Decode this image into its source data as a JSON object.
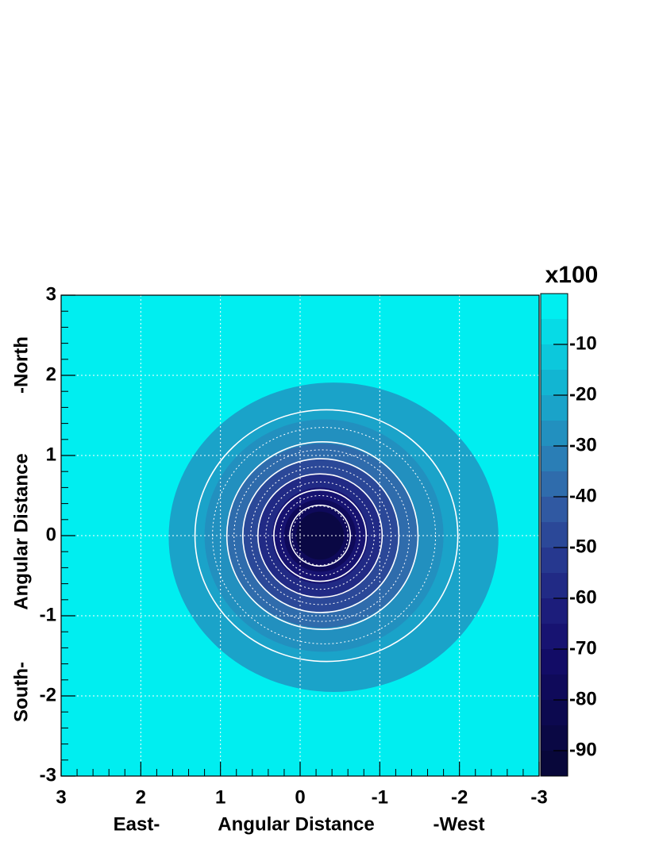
{
  "chart_data": {
    "type": "contour",
    "xlabel": [
      "East-",
      "Angular Distance",
      "-West"
    ],
    "ylabel": [
      "South-",
      "Angular Distance",
      "-North"
    ],
    "xlim": [
      3,
      -3
    ],
    "ylim": [
      -3,
      3
    ],
    "xticks": [
      3,
      2,
      1,
      0,
      -1,
      -2,
      -3
    ],
    "yticks": [
      -3,
      -2,
      -1,
      0,
      1,
      2,
      3
    ],
    "minor_per_major": 5,
    "grid": true,
    "z_multiplier": "x100",
    "zlim": [
      -95,
      0
    ],
    "zticks": [
      -10,
      -20,
      -30,
      -40,
      -50,
      -60,
      -70,
      -80,
      -90
    ],
    "zlevels": [
      0,
      -5,
      -10,
      -15,
      -20,
      -25,
      -30,
      -35,
      -40,
      -45,
      -50,
      -55,
      -60,
      -65,
      -70,
      -75,
      -80,
      -85,
      -90,
      -95
    ],
    "zcolors": [
      "#00eef0",
      "#06dbe6",
      "#0cc8dc",
      "#12b5d2",
      "#1aa3c9",
      "#2290bf",
      "#2a7eb6",
      "#2f6cac",
      "#3059a2",
      "#2b4898",
      "#26388f",
      "#212a85",
      "#1c1d7b",
      "#171371",
      "#120c66",
      "#0f0a5a",
      "#0c094f",
      "#0a0844",
      "#08073a"
    ],
    "regions": [
      {
        "z": -22,
        "cx": -0.42,
        "cy": -0.02,
        "rx": 2.07,
        "ry": 1.93
      },
      {
        "z": -27,
        "cx": -0.3,
        "cy": 0.0,
        "rx": 1.5,
        "ry": 1.45
      },
      {
        "z": -37,
        "cx": -0.28,
        "cy": 0.0,
        "rx": 1.2,
        "ry": 1.15
      },
      {
        "z": -47,
        "cx": -0.26,
        "cy": 0.0,
        "rx": 0.97,
        "ry": 0.95
      },
      {
        "z": -57,
        "cx": -0.25,
        "cy": 0.0,
        "rx": 0.78,
        "ry": 0.78
      },
      {
        "z": -67,
        "cx": -0.25,
        "cy": 0.0,
        "rx": 0.6,
        "ry": 0.6
      },
      {
        "z": -77,
        "cx": -0.25,
        "cy": 0.0,
        "rx": 0.45,
        "ry": 0.45
      },
      {
        "z": -87,
        "cx": -0.25,
        "cy": 0.0,
        "rx": 0.3,
        "ry": 0.3
      }
    ],
    "contour_lines": [
      {
        "cx": -0.33,
        "cy": 0.0,
        "rx": 1.65,
        "ry": 1.57,
        "style": "solid"
      },
      {
        "cx": -0.3,
        "cy": 0.0,
        "rx": 1.4,
        "ry": 1.35,
        "style": "dotted"
      },
      {
        "cx": -0.28,
        "cy": 0.0,
        "rx": 1.2,
        "ry": 1.17,
        "style": "solid"
      },
      {
        "cx": -0.27,
        "cy": 0.0,
        "rx": 1.1,
        "ry": 1.07,
        "style": "dotted"
      },
      {
        "cx": -0.26,
        "cy": 0.0,
        "rx": 0.98,
        "ry": 0.96,
        "style": "solid"
      },
      {
        "cx": -0.26,
        "cy": 0.0,
        "rx": 0.88,
        "ry": 0.86,
        "style": "dotted"
      },
      {
        "cx": -0.25,
        "cy": 0.0,
        "rx": 0.78,
        "ry": 0.77,
        "style": "solid"
      },
      {
        "cx": -0.25,
        "cy": 0.0,
        "rx": 0.68,
        "ry": 0.67,
        "style": "dotted"
      },
      {
        "cx": -0.25,
        "cy": 0.0,
        "rx": 0.58,
        "ry": 0.57,
        "style": "solid"
      },
      {
        "cx": -0.25,
        "cy": 0.0,
        "rx": 0.5,
        "ry": 0.5,
        "style": "dotted"
      },
      {
        "cx": -0.25,
        "cy": 0.0,
        "rx": 0.38,
        "ry": 0.38,
        "style": "solid"
      },
      {
        "cx": -0.25,
        "cy": 0.0,
        "rx": 0.35,
        "ry": 0.37,
        "style": "dotted"
      }
    ]
  }
}
